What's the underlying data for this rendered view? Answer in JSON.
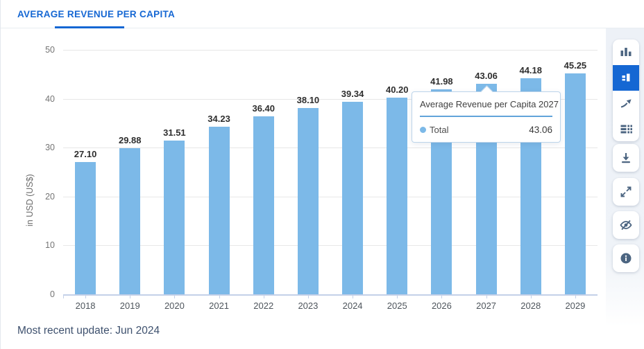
{
  "header": {
    "tab_label": "AVERAGE REVENUE PER CAPITA"
  },
  "palette": {
    "accent": "#1567d3",
    "bar": "#7cb9e8",
    "icon": "#4c6581"
  },
  "chart_data": {
    "type": "bar",
    "title": "Average Revenue per Capita",
    "categories": [
      "2018",
      "2019",
      "2020",
      "2021",
      "2022",
      "2023",
      "2024",
      "2025",
      "2026",
      "2027",
      "2028",
      "2029"
    ],
    "values": [
      27.1,
      29.88,
      31.51,
      34.23,
      36.4,
      38.1,
      39.34,
      40.2,
      41.98,
      43.06,
      44.18,
      45.25
    ],
    "xlabel": "",
    "ylabel": "in USD (US$)",
    "ylim": [
      0,
      50
    ],
    "yticks": [
      0,
      10,
      20,
      30,
      40,
      50
    ],
    "grid": true,
    "legend_position": "none",
    "value_labels_shown": true,
    "value_label_decimals": 2
  },
  "tooltip": {
    "title": "Average Revenue per Capita 2027",
    "series_label": "Total",
    "value": "43.06",
    "category": "2027",
    "category_index": 9
  },
  "toolbar": {
    "chart_type_icons": [
      {
        "name": "column-chart-icon",
        "selected": false
      },
      {
        "name": "block-chart-icon",
        "selected": true
      },
      {
        "name": "trend-line-icon",
        "selected": false
      },
      {
        "name": "table-view-icon",
        "selected": false
      }
    ],
    "action_icons": [
      {
        "name": "download-icon"
      },
      {
        "name": "fullscreen-icon"
      },
      {
        "name": "hide-chart-icon"
      },
      {
        "name": "info-icon"
      }
    ]
  },
  "footer": {
    "update_text": "Most recent update: Jun 2024"
  }
}
